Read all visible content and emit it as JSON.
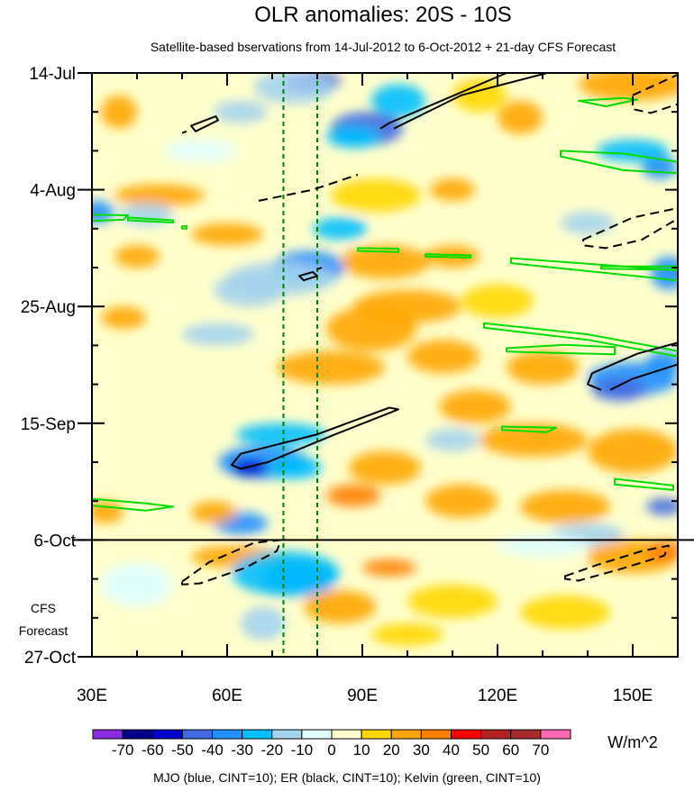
{
  "chart_data": {
    "type": "heatmap",
    "title": "OLR anomalies: 20S - 10S",
    "subtitle": "Satellite-based bservations from 14-Jul-2012 to 6-Oct-2012 + 21-day CFS Forecast",
    "x_axis": {
      "range": [
        30,
        160
      ],
      "ticks": [
        {
          "value": 30,
          "label": "30E"
        },
        {
          "value": 60,
          "label": "60E"
        },
        {
          "value": 90,
          "label": "90E"
        },
        {
          "value": 120,
          "label": "120E"
        },
        {
          "value": 150,
          "label": "150E"
        }
      ]
    },
    "y_axis": {
      "range_days": [
        0,
        105
      ],
      "ticks": [
        {
          "day": 0,
          "label": "14-Jul"
        },
        {
          "day": 21,
          "label": "4-Aug"
        },
        {
          "day": 42,
          "label": "25-Aug"
        },
        {
          "day": 63,
          "label": "15-Sep"
        },
        {
          "day": 84,
          "label": "6-Oct"
        },
        {
          "day": 105,
          "label": "27-Oct"
        }
      ]
    },
    "forecast_start_day": 84,
    "forecast_label_lines": [
      "CFS",
      "Forecast"
    ],
    "reference_lines_lon": [
      72.5,
      80
    ],
    "colorbar": {
      "levels": [
        -70,
        -60,
        -50,
        -40,
        -30,
        -20,
        -10,
        0,
        10,
        20,
        30,
        40,
        50,
        60,
        70
      ],
      "colors": [
        "#8a2be2",
        "#00008b",
        "#0000cd",
        "#4169e1",
        "#1e90ff",
        "#00bfff",
        "#a4d3ee",
        "#e0ffff",
        "#ffffcc",
        "#ffd700",
        "#ffa500",
        "#ff7f00",
        "#ff0000",
        "#b22222",
        "#a52a2a",
        "#ff69b4"
      ],
      "units": "W/m^2"
    },
    "footer_note": "MJO (blue, CINT=10); ER (black, CINT=10); Kelvin (green, CINT=10)",
    "contour_colors": {
      "er": "#000000",
      "kelvin": "#00dd00",
      "reference": "#008000"
    },
    "anomaly_blobs": [
      {
        "lon": 79,
        "day": 1.5,
        "value": -60,
        "rlon": 6,
        "rday": 2
      },
      {
        "lon": 75,
        "day": 2.5,
        "value": -20,
        "rlon": 9,
        "rday": 3
      },
      {
        "lon": 98,
        "day": 5,
        "value": -30,
        "rlon": 6,
        "rday": 3
      },
      {
        "lon": 91,
        "day": 10,
        "value": -50,
        "rlon": 8,
        "rday": 3
      },
      {
        "lon": 88,
        "day": 11.5,
        "value": -30,
        "rlon": 6,
        "rday": 2
      },
      {
        "lon": 63,
        "day": 7,
        "value": -20,
        "rlon": 6,
        "rday": 2
      },
      {
        "lon": 150,
        "day": 2,
        "value": 20,
        "rlon": 12,
        "rday": 3
      },
      {
        "lon": 36,
        "day": 7,
        "value": 20,
        "rlon": 4,
        "rday": 3
      },
      {
        "lon": 116,
        "day": 4,
        "value": 10,
        "rlon": 6,
        "rday": 3
      },
      {
        "lon": 125,
        "day": 8,
        "value": 20,
        "rlon": 5,
        "rday": 3
      },
      {
        "lon": 150,
        "day": 14,
        "value": -30,
        "rlon": 8,
        "rday": 2
      },
      {
        "lon": 156,
        "day": 17,
        "value": -40,
        "rlon": 4,
        "rday": 2
      },
      {
        "lon": 54,
        "day": 14,
        "value": -10,
        "rlon": 8,
        "rday": 2
      },
      {
        "lon": 93,
        "day": 22,
        "value": 10,
        "rlon": 10,
        "rday": 3
      },
      {
        "lon": 110,
        "day": 21,
        "value": 20,
        "rlon": 5,
        "rday": 2
      },
      {
        "lon": 45,
        "day": 22,
        "value": 20,
        "rlon": 10,
        "rday": 2
      },
      {
        "lon": 31,
        "day": 25,
        "value": -40,
        "rlon": 4,
        "rday": 2
      },
      {
        "lon": 42,
        "day": 25.5,
        "value": -20,
        "rlon": 6,
        "rday": 2
      },
      {
        "lon": 85,
        "day": 28,
        "value": -30,
        "rlon": 6,
        "rday": 2
      },
      {
        "lon": 95,
        "day": 34,
        "value": 20,
        "rlon": 10,
        "rday": 3
      },
      {
        "lon": 110,
        "day": 33,
        "value": 20,
        "rlon": 6,
        "rday": 2
      },
      {
        "lon": 78,
        "day": 35,
        "value": -40,
        "rlon": 8,
        "rday": 3
      },
      {
        "lon": 72,
        "day": 37,
        "value": -20,
        "rlon": 12,
        "rday": 3
      },
      {
        "lon": 65,
        "day": 39,
        "value": -20,
        "rlon": 8,
        "rday": 3
      },
      {
        "lon": 158,
        "day": 36,
        "value": -40,
        "rlon": 4,
        "rday": 3
      },
      {
        "lon": 60,
        "day": 29,
        "value": 20,
        "rlon": 8,
        "rday": 2
      },
      {
        "lon": 140,
        "day": 27,
        "value": -20,
        "rlon": 6,
        "rday": 2
      },
      {
        "lon": 40,
        "day": 33,
        "value": 20,
        "rlon": 5,
        "rday": 2
      },
      {
        "lon": 37,
        "day": 44,
        "value": 20,
        "rlon": 5,
        "rday": 2
      },
      {
        "lon": 100,
        "day": 42,
        "value": 20,
        "rlon": 12,
        "rday": 3
      },
      {
        "lon": 92,
        "day": 46,
        "value": 20,
        "rlon": 10,
        "rday": 4
      },
      {
        "lon": 120,
        "day": 41,
        "value": 10,
        "rlon": 8,
        "rday": 3
      },
      {
        "lon": 130,
        "day": 53,
        "value": 20,
        "rlon": 8,
        "rday": 3
      },
      {
        "lon": 150,
        "day": 55,
        "value": -40,
        "rlon": 10,
        "rday": 3
      },
      {
        "lon": 147,
        "day": 57,
        "value": -50,
        "rlon": 6,
        "rday": 2
      },
      {
        "lon": 157,
        "day": 52,
        "value": -40,
        "rlon": 4,
        "rday": 2
      },
      {
        "lon": 108,
        "day": 51,
        "value": 20,
        "rlon": 8,
        "rday": 3
      },
      {
        "lon": 83,
        "day": 53,
        "value": 20,
        "rlon": 12,
        "rday": 3
      },
      {
        "lon": 115,
        "day": 60,
        "value": 20,
        "rlon": 8,
        "rday": 3
      },
      {
        "lon": 58,
        "day": 47,
        "value": -20,
        "rlon": 8,
        "rday": 2
      },
      {
        "lon": 72,
        "day": 65,
        "value": -30,
        "rlon": 10,
        "rday": 2
      },
      {
        "lon": 68,
        "day": 70,
        "value": -40,
        "rlon": 10,
        "rday": 3
      },
      {
        "lon": 65,
        "day": 71,
        "value": -60,
        "rlon": 4,
        "rday": 1.5
      },
      {
        "lon": 75,
        "day": 71,
        "value": -30,
        "rlon": 6,
        "rday": 2
      },
      {
        "lon": 128,
        "day": 66,
        "value": 20,
        "rlon": 12,
        "rday": 3
      },
      {
        "lon": 150,
        "day": 68,
        "value": 20,
        "rlon": 10,
        "rday": 4
      },
      {
        "lon": 95,
        "day": 71,
        "value": 20,
        "rlon": 8,
        "rday": 3
      },
      {
        "lon": 110,
        "day": 66,
        "value": -20,
        "rlon": 6,
        "rday": 2
      },
      {
        "lon": 88,
        "day": 76,
        "value": 30,
        "rlon": 6,
        "rday": 2
      },
      {
        "lon": 112,
        "day": 77,
        "value": 20,
        "rlon": 8,
        "rday": 3
      },
      {
        "lon": 135,
        "day": 78,
        "value": 20,
        "rlon": 10,
        "rday": 3
      },
      {
        "lon": 157,
        "day": 78,
        "value": -50,
        "rlon": 4,
        "rday": 1.5
      },
      {
        "lon": 63,
        "day": 81,
        "value": -40,
        "rlon": 6,
        "rday": 2
      },
      {
        "lon": 57,
        "day": 79,
        "value": 20,
        "rlon": 5,
        "rday": 2
      },
      {
        "lon": 33,
        "day": 79,
        "value": 20,
        "rlon": 4,
        "rday": 2
      },
      {
        "lon": 140,
        "day": 83,
        "value": -20,
        "rlon": 8,
        "rday": 2
      },
      {
        "lon": 62,
        "day": 87,
        "value": 20,
        "rlon": 10,
        "rday": 2
      },
      {
        "lon": 76,
        "day": 91,
        "value": -50,
        "rlon": 8,
        "rday": 3
      },
      {
        "lon": 73,
        "day": 90,
        "value": -30,
        "rlon": 12,
        "rday": 4
      },
      {
        "lon": 96,
        "day": 89,
        "value": 30,
        "rlon": 6,
        "rday": 1.5
      },
      {
        "lon": 150,
        "day": 87,
        "value": 20,
        "rlon": 10,
        "rday": 3
      },
      {
        "lon": 157,
        "day": 86,
        "value": 30,
        "rlon": 4,
        "rday": 2
      },
      {
        "lon": 68,
        "day": 99,
        "value": -20,
        "rlon": 5,
        "rday": 3
      },
      {
        "lon": 85,
        "day": 96,
        "value": 20,
        "rlon": 8,
        "rday": 3
      },
      {
        "lon": 110,
        "day": 95,
        "value": 10,
        "rlon": 10,
        "rday": 3
      },
      {
        "lon": 135,
        "day": 97,
        "value": 10,
        "rlon": 10,
        "rday": 3
      },
      {
        "lon": 130,
        "day": 85,
        "value": -10,
        "rlon": 10,
        "rday": 2
      },
      {
        "lon": 40,
        "day": 92,
        "value": -10,
        "rlon": 8,
        "rday": 4
      },
      {
        "lon": 100,
        "day": 101,
        "value": 10,
        "rlon": 8,
        "rday": 2
      }
    ],
    "er_contours": [
      {
        "closed": false,
        "dashed": false,
        "points": [
          [
            94,
            10
          ],
          [
            96,
            9
          ],
          [
            122,
            0
          ],
          [
            131,
            0
          ],
          [
            112,
            4
          ],
          [
            97,
            10
          ]
        ]
      },
      {
        "closed": true,
        "dashed": false,
        "points": [
          [
            52,
            9.5
          ],
          [
            57.5,
            7.8
          ],
          [
            58,
            8.5
          ],
          [
            53,
            10.5
          ]
        ]
      },
      {
        "closed": false,
        "dashed": false,
        "points": [
          [
            50,
            10.8
          ],
          [
            51,
            10.5
          ]
        ]
      },
      {
        "closed": false,
        "dashed": true,
        "points": [
          [
            67,
            23
          ],
          [
            79,
            21
          ],
          [
            89,
            18.3
          ]
        ]
      },
      {
        "closed": true,
        "dashed": true,
        "points": [
          [
            150,
            4
          ],
          [
            160,
            0.3
          ],
          [
            160,
            5.6
          ],
          [
            154,
            7.2
          ],
          [
            150,
            6.5
          ]
        ]
      },
      {
        "closed": true,
        "dashed": true,
        "points": [
          [
            139,
            30
          ],
          [
            150,
            26
          ],
          [
            160,
            24.3
          ],
          [
            160,
            26.2
          ],
          [
            152,
            30
          ],
          [
            144,
            31.5
          ],
          [
            139,
            31
          ]
        ]
      },
      {
        "closed": true,
        "dashed": false,
        "points": [
          [
            76,
            36.5
          ],
          [
            79,
            35.8
          ],
          [
            80,
            36.5
          ],
          [
            77,
            37.3
          ]
        ]
      },
      {
        "closed": false,
        "dashed": false,
        "points": [
          [
            80,
            35.3
          ],
          [
            81,
            35
          ]
        ]
      },
      {
        "closed": false,
        "dashed": false,
        "points": [
          [
            143,
            57
          ],
          [
            140,
            56
          ],
          [
            141,
            54
          ],
          [
            151,
            50.5
          ],
          [
            160,
            48.5
          ]
        ]
      },
      {
        "closed": false,
        "dashed": false,
        "points": [
          [
            145,
            57
          ],
          [
            150,
            55
          ],
          [
            160,
            52.4
          ]
        ]
      },
      {
        "closed": true,
        "dashed": false,
        "points": [
          [
            61,
            70.5
          ],
          [
            63,
            68.5
          ],
          [
            80,
            65
          ],
          [
            96,
            60.2
          ],
          [
            98,
            60.5
          ],
          [
            84,
            65
          ],
          [
            69,
            70
          ],
          [
            63,
            71.2
          ]
        ]
      },
      {
        "closed": true,
        "dashed": true,
        "points": [
          [
            50,
            91.5
          ],
          [
            56,
            88
          ],
          [
            66,
            84.5
          ],
          [
            72,
            84
          ],
          [
            71,
            86
          ],
          [
            64,
            89
          ],
          [
            54,
            91.8
          ],
          [
            50,
            92
          ]
        ]
      },
      {
        "closed": true,
        "dashed": true,
        "points": [
          [
            135,
            90.5
          ],
          [
            142,
            88.5
          ],
          [
            152,
            86
          ],
          [
            158,
            85
          ],
          [
            157,
            86.8
          ],
          [
            147,
            89.3
          ],
          [
            138,
            91.3
          ],
          [
            135,
            91
          ]
        ]
      }
    ],
    "kelvin_contours": [
      {
        "closed": true,
        "points": [
          [
            138,
            5
          ],
          [
            148,
            4.5
          ],
          [
            151,
            4.8
          ],
          [
            144,
            6
          ]
        ]
      },
      {
        "closed": true,
        "points": [
          [
            134,
            14
          ],
          [
            148,
            14.5
          ],
          [
            160,
            16
          ],
          [
            160,
            18
          ],
          [
            148,
            17.5
          ],
          [
            134,
            15
          ]
        ]
      },
      {
        "closed": true,
        "points": [
          [
            30,
            25.5
          ],
          [
            38,
            25.6
          ],
          [
            37,
            26.4
          ],
          [
            30,
            26.6
          ]
        ]
      },
      {
        "closed": true,
        "points": [
          [
            38,
            26
          ],
          [
            48,
            26.5
          ],
          [
            48,
            26.9
          ],
          [
            38,
            26.5
          ]
        ]
      },
      {
        "closed": true,
        "points": [
          [
            50,
            27.6
          ],
          [
            51,
            27.5
          ],
          [
            51,
            28
          ],
          [
            50,
            28
          ]
        ]
      },
      {
        "closed": true,
        "points": [
          [
            89,
            31.5
          ],
          [
            98,
            31.6
          ],
          [
            98,
            32.2
          ],
          [
            89,
            32
          ]
        ]
      },
      {
        "closed": true,
        "points": [
          [
            104,
            32.6
          ],
          [
            114,
            32.8
          ],
          [
            114,
            33.2
          ],
          [
            104,
            33
          ]
        ]
      },
      {
        "closed": true,
        "points": [
          [
            123,
            33.3
          ],
          [
            160,
            35.5
          ],
          [
            160,
            37.3
          ],
          [
            123,
            34.2
          ]
        ]
      },
      {
        "closed": true,
        "points": [
          [
            143,
            34.8
          ],
          [
            160,
            34.8
          ],
          [
            160,
            35.4
          ],
          [
            143,
            35.2
          ]
        ]
      },
      {
        "closed": true,
        "points": [
          [
            117,
            45
          ],
          [
            140,
            47
          ],
          [
            160,
            50
          ],
          [
            160,
            51
          ],
          [
            140,
            48
          ],
          [
            117,
            45.8
          ]
        ]
      },
      {
        "closed": true,
        "points": [
          [
            122,
            49.5
          ],
          [
            135,
            48.9
          ],
          [
            146,
            49.3
          ],
          [
            146,
            50.6
          ],
          [
            130,
            50.3
          ],
          [
            122,
            50.1
          ]
        ]
      },
      {
        "closed": true,
        "points": [
          [
            121,
            63.6
          ],
          [
            133,
            63.8
          ],
          [
            131,
            64.6
          ],
          [
            121,
            64.2
          ]
        ]
      },
      {
        "closed": true,
        "points": [
          [
            30,
            76.6
          ],
          [
            42,
            77.4
          ],
          [
            48,
            78
          ],
          [
            42,
            78.7
          ],
          [
            30,
            77.8
          ]
        ]
      },
      {
        "closed": true,
        "points": [
          [
            146,
            73
          ],
          [
            159,
            74.2
          ],
          [
            159,
            75
          ],
          [
            146,
            74
          ]
        ]
      }
    ]
  }
}
